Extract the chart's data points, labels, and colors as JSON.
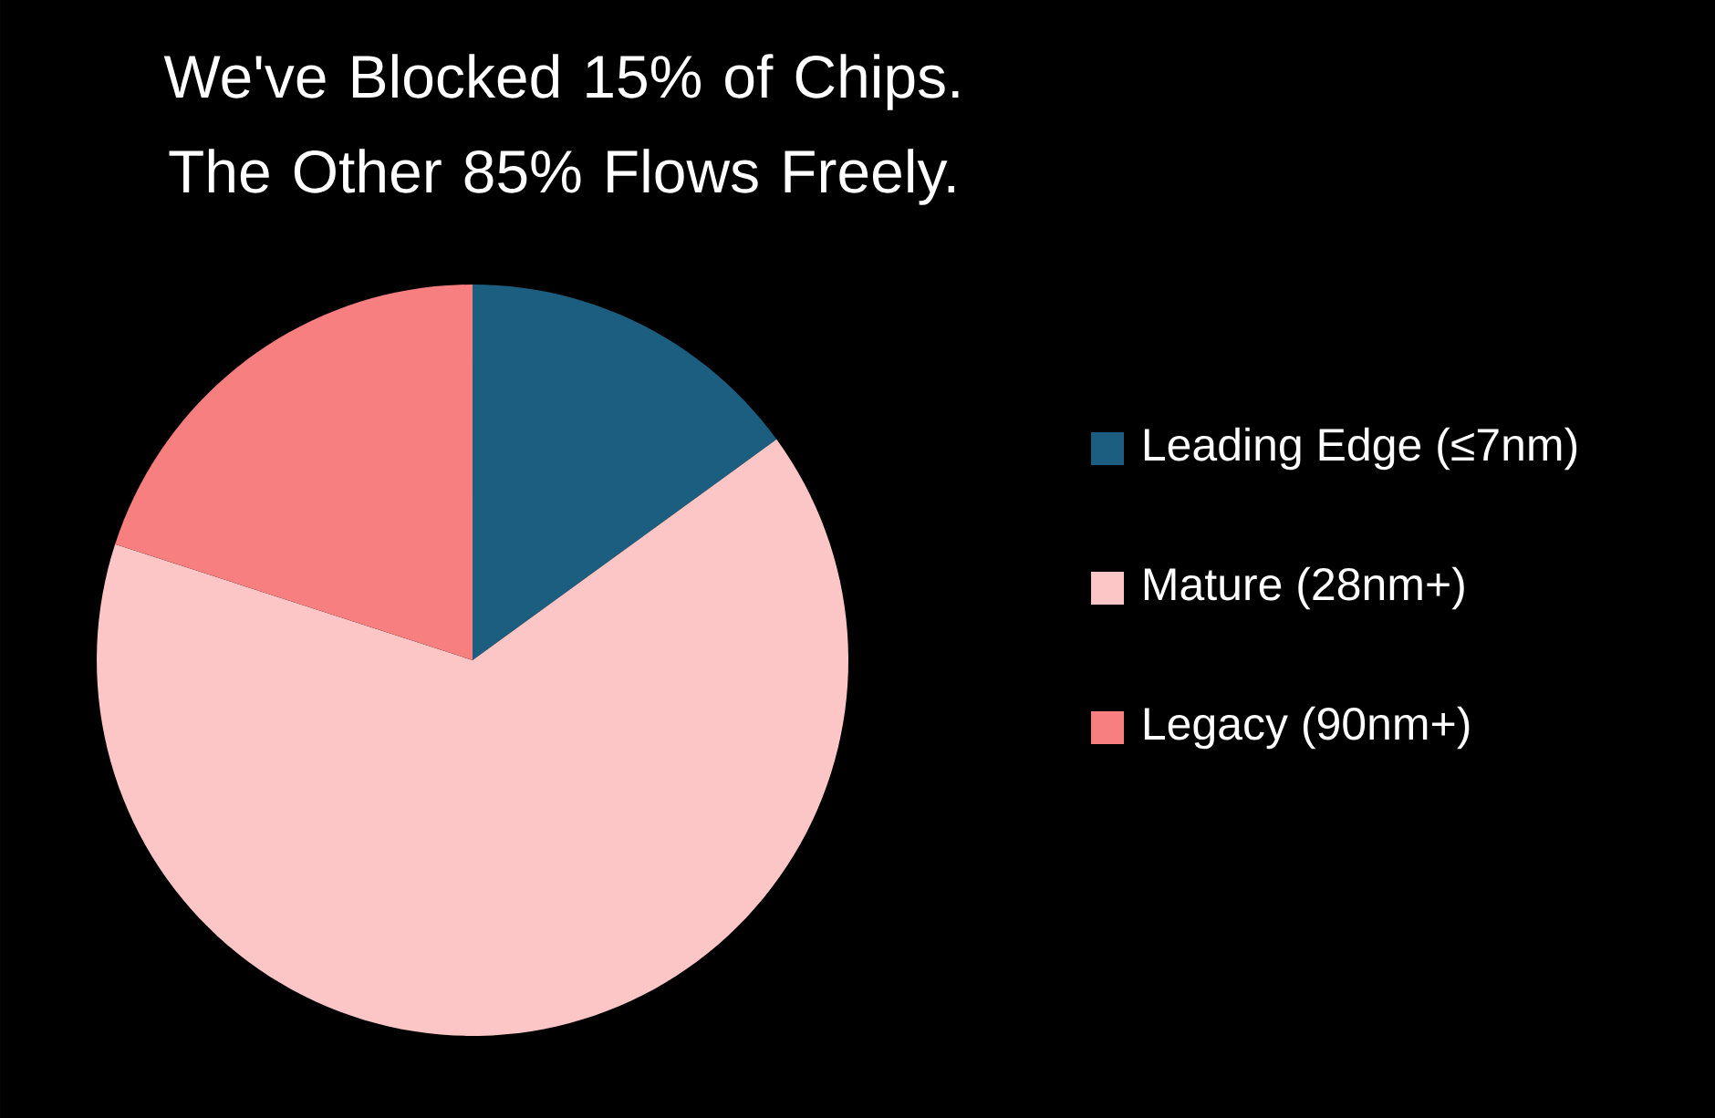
{
  "chart_data": {
    "type": "pie",
    "title": "We've Blocked 15% of Chips. The Other 85% Flows Freely.",
    "categories": [
      "Leading Edge (≤7nm)",
      "Mature (28nm+)",
      "Legacy (90nm+)"
    ],
    "values": [
      15,
      65,
      20
    ],
    "colors": [
      "#1b5e7f",
      "#fbc6c5",
      "#f87f7f"
    ],
    "legend": "right"
  }
}
